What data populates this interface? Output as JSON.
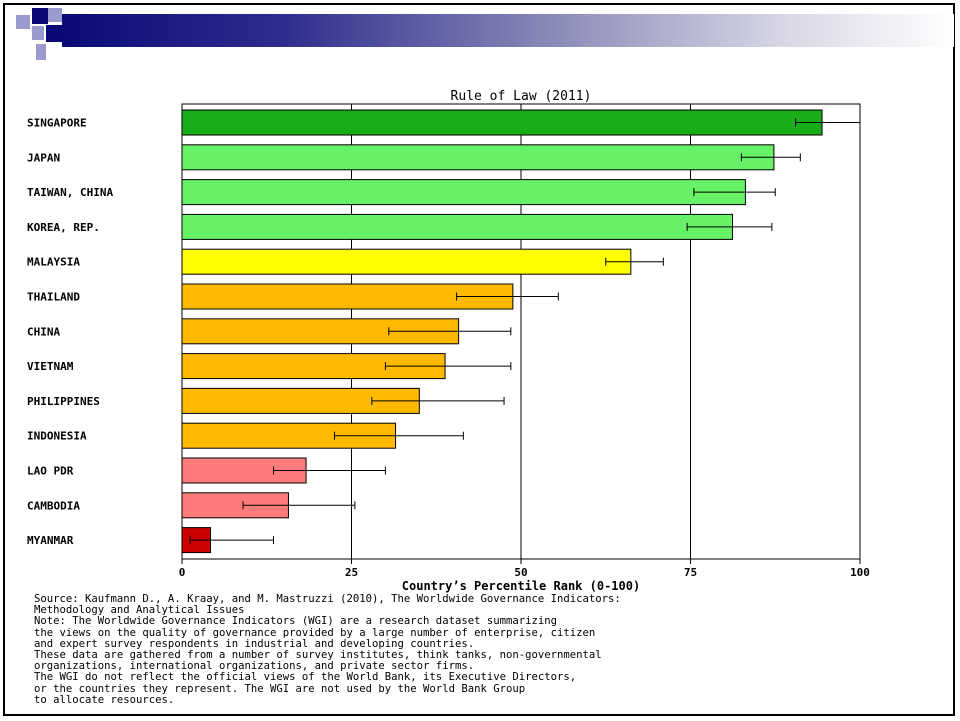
{
  "chart_data": {
    "type": "bar",
    "orientation": "horizontal",
    "title": "Rule of Law (2011)",
    "xlabel": "Country’s Percentile Rank (0-100)",
    "xlim": [
      0,
      100
    ],
    "xticks": [
      "0",
      "25",
      "50",
      "75",
      "100"
    ],
    "grid": true,
    "categories": [
      "SINGAPORE",
      "JAPAN",
      "TAIWAN, CHINA",
      "KOREA, REP.",
      "MALAYSIA",
      "THAILAND",
      "CHINA",
      "VIETNAM",
      "PHILIPPINES",
      "INDONESIA",
      "LAO PDR",
      "CAMBODIA",
      "MYANMAR"
    ],
    "values": [
      94.4,
      87.3,
      83.1,
      81.2,
      66.2,
      48.8,
      40.8,
      38.8,
      35.0,
      31.5,
      18.3,
      15.7,
      4.2
    ],
    "error_low": [
      90.5,
      82.5,
      75.5,
      74.5,
      62.5,
      40.5,
      30.5,
      30.0,
      28.0,
      22.5,
      13.5,
      9.0,
      1.2
    ],
    "error_high": [
      100.0,
      91.2,
      87.5,
      87.0,
      71.0,
      55.5,
      48.5,
      48.5,
      47.5,
      41.5,
      30.0,
      25.5,
      13.5
    ],
    "bar_colors": [
      "#19ad19",
      "#66f166",
      "#66f166",
      "#66f166",
      "#ffff00",
      "#ffba00",
      "#ffba00",
      "#ffba00",
      "#ffba00",
      "#ffba00",
      "#ff7b7b",
      "#ff7b7b",
      "#cc0000"
    ]
  },
  "source_notes": [
    "Source: Kaufmann D., A. Kraay, and M. Mastruzzi (2010), The Worldwide Governance Indicators:",
    "Methodology and Analytical Issues",
    "Note: The Worldwide Governance Indicators (WGI) are a research dataset summarizing",
    "the views on the quality of governance provided by a large number of enterprise, citizen",
    "and expert survey respondents in industrial and developing countries.",
    "These data are gathered from a number of survey institutes, think tanks, non-governmental",
    "organizations, international organizations, and private sector firms.",
    "The WGI do not reflect the official views of the World Bank, its Executive Directors,",
    "or the countries they represent. The WGI are not used by the World Bank Group",
    "to allocate resources."
  ],
  "colors": {
    "banner_dark": "#0a0a78",
    "square_dark": "#0a0a78",
    "square_light": "#9a9acf"
  }
}
